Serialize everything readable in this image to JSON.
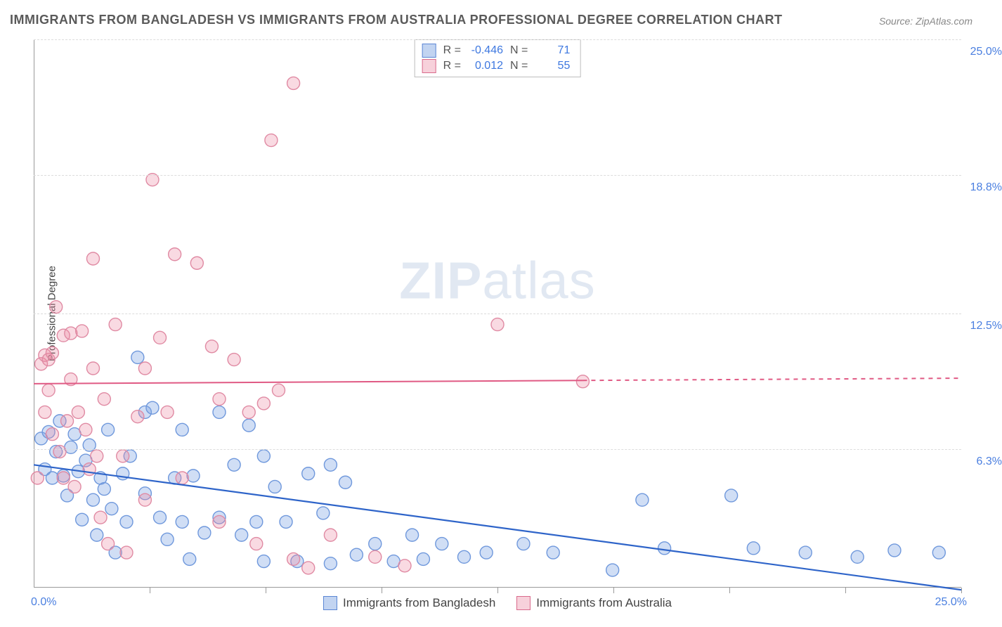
{
  "title": "IMMIGRANTS FROM BANGLADESH VS IMMIGRANTS FROM AUSTRALIA PROFESSIONAL DEGREE CORRELATION CHART",
  "source": "Source: ZipAtlas.com",
  "y_axis_label": "Professional Degree",
  "watermark_bold": "ZIP",
  "watermark_light": "atlas",
  "chart": {
    "type": "scatter",
    "xlim": [
      0,
      25
    ],
    "ylim": [
      0,
      25
    ],
    "x_origin_label": "0.0%",
    "x_end_label": "25.0%",
    "y_ticks": [
      {
        "v": 6.3,
        "label": "6.3%"
      },
      {
        "v": 12.5,
        "label": "12.5%"
      },
      {
        "v": 18.8,
        "label": "18.8%"
      },
      {
        "v": 25.0,
        "label": "25.0%"
      }
    ],
    "x_ticks_minor": [
      3.125,
      6.25,
      9.375,
      12.5,
      15.625,
      18.75,
      21.875,
      25
    ],
    "grid_color": "#dcdcdc",
    "background_color": "#ffffff",
    "marker_radius": 9,
    "marker_stroke_width": 1.4,
    "series": [
      {
        "name": "Immigrants from Bangladesh",
        "fill": "rgba(120,160,225,0.35)",
        "stroke": "#6f98dc",
        "R": "-0.446",
        "N": "71",
        "trend": {
          "x1": 0,
          "y1": 5.6,
          "x2": 25,
          "y2": -0.1,
          "color": "#2e64c9",
          "width": 2.2,
          "dash_from_x": null
        },
        "points": [
          [
            0.2,
            6.8
          ],
          [
            0.3,
            5.4
          ],
          [
            0.4,
            7.1
          ],
          [
            0.5,
            5.0
          ],
          [
            0.6,
            6.2
          ],
          [
            0.7,
            7.6
          ],
          [
            0.8,
            5.1
          ],
          [
            0.9,
            4.2
          ],
          [
            1.0,
            6.4
          ],
          [
            1.1,
            7.0
          ],
          [
            1.2,
            5.3
          ],
          [
            1.3,
            3.1
          ],
          [
            1.4,
            5.8
          ],
          [
            1.5,
            6.5
          ],
          [
            1.6,
            4.0
          ],
          [
            1.7,
            2.4
          ],
          [
            1.8,
            5.0
          ],
          [
            1.9,
            4.5
          ],
          [
            2.0,
            7.2
          ],
          [
            2.1,
            3.6
          ],
          [
            2.2,
            1.6
          ],
          [
            2.4,
            5.2
          ],
          [
            2.5,
            3.0
          ],
          [
            2.6,
            6.0
          ],
          [
            2.8,
            10.5
          ],
          [
            3.0,
            8.0
          ],
          [
            3.0,
            4.3
          ],
          [
            3.2,
            8.2
          ],
          [
            3.4,
            3.2
          ],
          [
            3.6,
            2.2
          ],
          [
            3.8,
            5.0
          ],
          [
            4.0,
            7.2
          ],
          [
            4.0,
            3.0
          ],
          [
            4.2,
            1.3
          ],
          [
            4.3,
            5.1
          ],
          [
            4.6,
            2.5
          ],
          [
            5.0,
            8.0
          ],
          [
            5.0,
            3.2
          ],
          [
            5.4,
            5.6
          ],
          [
            5.6,
            2.4
          ],
          [
            5.8,
            7.4
          ],
          [
            6.0,
            3.0
          ],
          [
            6.2,
            1.2
          ],
          [
            6.2,
            6.0
          ],
          [
            6.5,
            4.6
          ],
          [
            6.8,
            3.0
          ],
          [
            7.1,
            1.2
          ],
          [
            7.4,
            5.2
          ],
          [
            7.8,
            3.4
          ],
          [
            8.0,
            5.6
          ],
          [
            8.0,
            1.1
          ],
          [
            8.4,
            4.8
          ],
          [
            8.7,
            1.5
          ],
          [
            9.2,
            2.0
          ],
          [
            9.7,
            1.2
          ],
          [
            10.2,
            2.4
          ],
          [
            10.5,
            1.3
          ],
          [
            11.0,
            2.0
          ],
          [
            11.6,
            1.4
          ],
          [
            12.2,
            1.6
          ],
          [
            13.2,
            2.0
          ],
          [
            14.0,
            1.6
          ],
          [
            15.6,
            0.8
          ],
          [
            16.4,
            4.0
          ],
          [
            17.0,
            1.8
          ],
          [
            18.8,
            4.2
          ],
          [
            19.4,
            1.8
          ],
          [
            20.8,
            1.6
          ],
          [
            22.2,
            1.4
          ],
          [
            23.2,
            1.7
          ],
          [
            24.4,
            1.6
          ]
        ]
      },
      {
        "name": "Immigrants from Australia",
        "fill": "rgba(235,140,165,0.32)",
        "stroke": "#e08aa3",
        "R": "0.012",
        "N": "55",
        "trend": {
          "x1": 0,
          "y1": 9.3,
          "x2": 25,
          "y2": 9.55,
          "color": "#e05a84",
          "width": 2,
          "dash_from_x": 14.8
        },
        "points": [
          [
            0.1,
            5.0
          ],
          [
            0.2,
            10.2
          ],
          [
            0.3,
            8.0
          ],
          [
            0.3,
            10.6
          ],
          [
            0.4,
            10.4
          ],
          [
            0.4,
            9.0
          ],
          [
            0.5,
            7.0
          ],
          [
            0.5,
            10.7
          ],
          [
            0.6,
            12.8
          ],
          [
            0.7,
            6.2
          ],
          [
            0.8,
            11.5
          ],
          [
            0.8,
            5.0
          ],
          [
            0.9,
            7.6
          ],
          [
            1.0,
            9.5
          ],
          [
            1.0,
            11.6
          ],
          [
            1.1,
            4.6
          ],
          [
            1.2,
            8.0
          ],
          [
            1.3,
            11.7
          ],
          [
            1.4,
            7.2
          ],
          [
            1.5,
            5.4
          ],
          [
            1.6,
            15.0
          ],
          [
            1.6,
            10.0
          ],
          [
            1.7,
            6.0
          ],
          [
            1.8,
            3.2
          ],
          [
            1.9,
            8.6
          ],
          [
            2.0,
            2.0
          ],
          [
            2.2,
            12.0
          ],
          [
            2.4,
            6.0
          ],
          [
            2.5,
            1.6
          ],
          [
            2.8,
            7.8
          ],
          [
            3.0,
            10.0
          ],
          [
            3.0,
            4.0
          ],
          [
            3.2,
            18.6
          ],
          [
            3.4,
            11.4
          ],
          [
            3.6,
            8.0
          ],
          [
            3.8,
            15.2
          ],
          [
            4.0,
            5.0
          ],
          [
            4.4,
            14.8
          ],
          [
            4.8,
            11.0
          ],
          [
            5.0,
            8.6
          ],
          [
            5.0,
            3.0
          ],
          [
            5.4,
            10.4
          ],
          [
            5.8,
            8.0
          ],
          [
            6.0,
            2.0
          ],
          [
            6.2,
            8.4
          ],
          [
            6.6,
            9.0
          ],
          [
            7.0,
            23.0
          ],
          [
            7.0,
            1.3
          ],
          [
            6.4,
            20.4
          ],
          [
            7.4,
            0.9
          ],
          [
            8.0,
            2.4
          ],
          [
            9.2,
            1.4
          ],
          [
            10.0,
            1.0
          ],
          [
            12.5,
            12.0
          ],
          [
            14.8,
            9.4
          ]
        ]
      }
    ]
  },
  "legend_bottom": [
    {
      "swatch": "blue",
      "label": "Immigrants from Bangladesh"
    },
    {
      "swatch": "pink",
      "label": "Immigrants from Australia"
    }
  ],
  "legend_top_labels": {
    "R": "R =",
    "N": "N ="
  }
}
